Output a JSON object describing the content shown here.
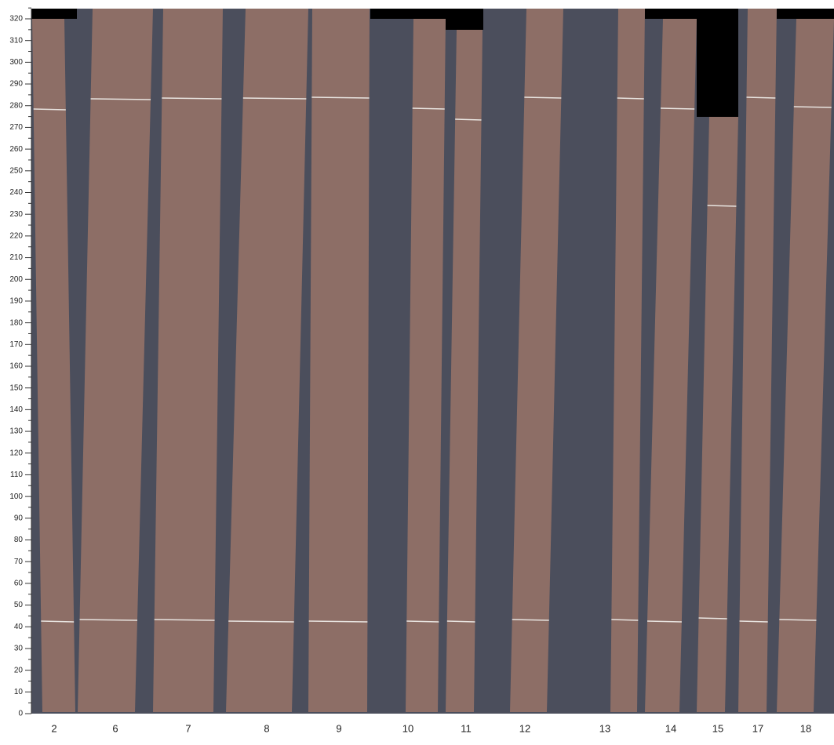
{
  "ruler": {
    "ylim": [
      0,
      320
    ],
    "yticks": [
      0,
      10,
      20,
      30,
      40,
      50,
      60,
      70,
      80,
      90,
      100,
      110,
      120,
      130,
      140,
      150,
      160,
      170,
      180,
      190,
      200,
      210,
      220,
      230,
      240,
      250,
      260,
      270,
      280,
      290,
      300,
      310,
      320
    ]
  },
  "strips": {
    "labels": [
      "2",
      "6",
      "7",
      "8",
      "9",
      "10",
      "11",
      "12",
      "13",
      "14",
      "15",
      "17",
      "18"
    ]
  }
}
